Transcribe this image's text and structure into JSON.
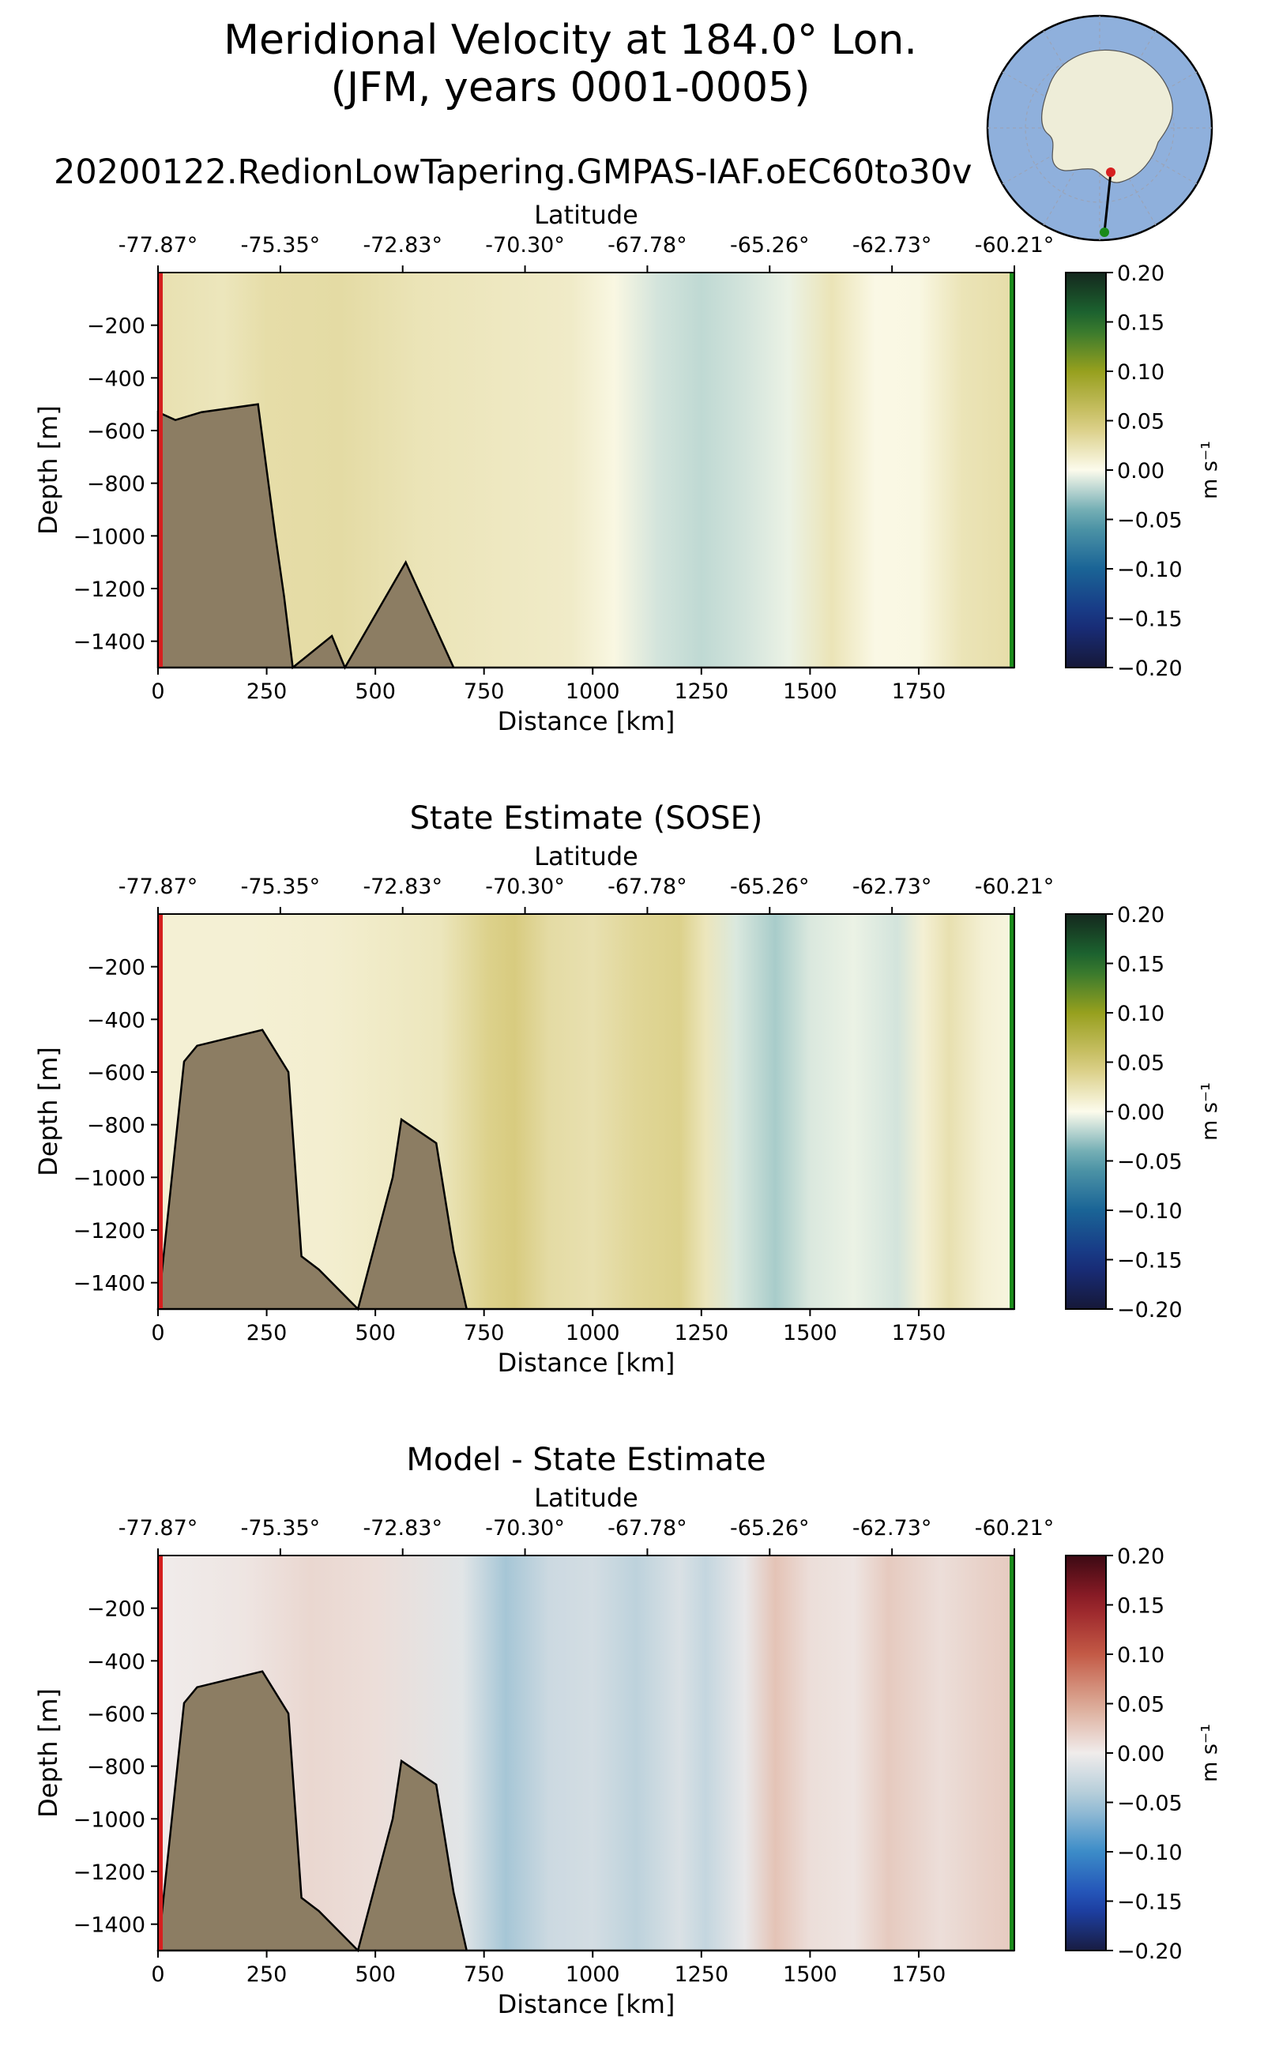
{
  "header": {
    "title_line1": "Meridional Velocity at 184.0° Lon.",
    "title_line2": "(JFM, years 0001-0005)",
    "subtitle": "20200122.RedionLowTapering.GMPAS-IAF.oEC60to30v"
  },
  "colors": {
    "seafloor_fill": "#8c7d63",
    "transect_start_marker": "#d62020",
    "transect_end_marker": "#1a8a1a",
    "inset_ocean": "#8fb0dc",
    "inset_land": "#eeedd8"
  },
  "chart_data": [
    {
      "type": "heatmap",
      "title": "",
      "xlabel": "Distance [km]",
      "ylabel": "Depth [m]",
      "top_axis_label": "Latitude",
      "x_ticks": [
        0,
        250,
        500,
        750,
        1000,
        1250,
        1500,
        1750
      ],
      "x_tick_labels": [
        "0",
        "250",
        "500",
        "750",
        "1000",
        "1250",
        "1500",
        "1750"
      ],
      "y_ticks": [
        -200,
        -400,
        -600,
        -800,
        -1000,
        -1200,
        -1400
      ],
      "y_tick_labels": [
        "−200",
        "−400",
        "−600",
        "−800",
        "−1000",
        "−1200",
        "−1400"
      ],
      "top_tick_labels": [
        "-77.87°",
        "-75.35°",
        "-72.83°",
        "-70.30°",
        "-67.78°",
        "-65.26°",
        "-62.73°",
        "-60.21°"
      ],
      "xlim": [
        0,
        1970
      ],
      "ylim": [
        -1500,
        0
      ],
      "colorbar": {
        "cmap": "delta",
        "range": [
          -0.2,
          0.2
        ],
        "ticks": [
          "0.20",
          "0.15",
          "0.10",
          "0.05",
          "0.00",
          "−0.05",
          "−0.10",
          "−0.15",
          "−0.20"
        ],
        "label": "m s⁻¹"
      },
      "field_columns": [
        {
          "x": 0,
          "v": 0.025
        },
        {
          "x": 150,
          "v": 0.02
        },
        {
          "x": 250,
          "v": 0.028
        },
        {
          "x": 420,
          "v": 0.03
        },
        {
          "x": 600,
          "v": 0.022
        },
        {
          "x": 800,
          "v": 0.018
        },
        {
          "x": 950,
          "v": 0.015
        },
        {
          "x": 1050,
          "v": 0.004
        },
        {
          "x": 1150,
          "v": -0.012
        },
        {
          "x": 1250,
          "v": -0.018
        },
        {
          "x": 1350,
          "v": -0.012
        },
        {
          "x": 1450,
          "v": -0.005
        },
        {
          "x": 1550,
          "v": 0.022
        },
        {
          "x": 1650,
          "v": 0.003
        },
        {
          "x": 1750,
          "v": 0.004
        },
        {
          "x": 1850,
          "v": 0.022
        },
        {
          "x": 1970,
          "v": 0.028
        }
      ],
      "seafloor_depth_profile": [
        {
          "x": 0,
          "z": -530
        },
        {
          "x": 40,
          "z": -560
        },
        {
          "x": 100,
          "z": -530
        },
        {
          "x": 230,
          "z": -500
        },
        {
          "x": 270,
          "z": -1000
        },
        {
          "x": 290,
          "z": -1230
        },
        {
          "x": 310,
          "z": -1500
        },
        {
          "x": 400,
          "z": -1380
        },
        {
          "x": 430,
          "z": -1500
        },
        {
          "x": 570,
          "z": -1100
        },
        {
          "x": 680,
          "z": -1500
        },
        {
          "x": 1970,
          "z": -1500
        }
      ]
    },
    {
      "type": "heatmap",
      "title": "State Estimate (SOSE)",
      "xlabel": "Distance [km]",
      "ylabel": "Depth [m]",
      "top_axis_label": "Latitude",
      "x_ticks": [
        0,
        250,
        500,
        750,
        1000,
        1250,
        1500,
        1750
      ],
      "x_tick_labels": [
        "0",
        "250",
        "500",
        "750",
        "1000",
        "1250",
        "1500",
        "1750"
      ],
      "y_ticks": [
        -200,
        -400,
        -600,
        -800,
        -1000,
        -1200,
        -1400
      ],
      "y_tick_labels": [
        "−200",
        "−400",
        "−600",
        "−800",
        "−1000",
        "−1200",
        "−1400"
      ],
      "top_tick_labels": [
        "-77.87°",
        "-75.35°",
        "-72.83°",
        "-70.30°",
        "-67.78°",
        "-65.26°",
        "-62.73°",
        "-60.21°"
      ],
      "xlim": [
        0,
        1970
      ],
      "ylim": [
        -1500,
        0
      ],
      "colorbar": {
        "cmap": "delta",
        "range": [
          -0.2,
          0.2
        ],
        "ticks": [
          "0.20",
          "0.15",
          "0.10",
          "0.05",
          "0.00",
          "−0.05",
          "−0.10",
          "−0.15",
          "−0.20"
        ],
        "label": "m s⁻¹"
      },
      "field_columns": [
        {
          "x": 0,
          "v": 0.01
        },
        {
          "x": 200,
          "v": 0.01
        },
        {
          "x": 400,
          "v": 0.012
        },
        {
          "x": 650,
          "v": 0.02
        },
        {
          "x": 760,
          "v": 0.04
        },
        {
          "x": 820,
          "v": 0.045
        },
        {
          "x": 900,
          "v": 0.03
        },
        {
          "x": 1000,
          "v": 0.025
        },
        {
          "x": 1100,
          "v": 0.035
        },
        {
          "x": 1200,
          "v": 0.04
        },
        {
          "x": 1260,
          "v": 0.02
        },
        {
          "x": 1330,
          "v": -0.01
        },
        {
          "x": 1420,
          "v": -0.025
        },
        {
          "x": 1500,
          "v": -0.01
        },
        {
          "x": 1600,
          "v": -0.005
        },
        {
          "x": 1700,
          "v": -0.012
        },
        {
          "x": 1760,
          "v": 0.01
        },
        {
          "x": 1820,
          "v": 0.025
        },
        {
          "x": 1900,
          "v": 0.01
        },
        {
          "x": 1970,
          "v": 0.005
        }
      ],
      "seafloor_depth_profile": [
        {
          "x": 0,
          "z": -1500
        },
        {
          "x": 60,
          "z": -560
        },
        {
          "x": 90,
          "z": -500
        },
        {
          "x": 240,
          "z": -440
        },
        {
          "x": 300,
          "z": -600
        },
        {
          "x": 330,
          "z": -1300
        },
        {
          "x": 370,
          "z": -1350
        },
        {
          "x": 460,
          "z": -1500
        },
        {
          "x": 540,
          "z": -1000
        },
        {
          "x": 560,
          "z": -780
        },
        {
          "x": 640,
          "z": -870
        },
        {
          "x": 680,
          "z": -1280
        },
        {
          "x": 710,
          "z": -1500
        },
        {
          "x": 1970,
          "z": -1500
        }
      ]
    },
    {
      "type": "heatmap",
      "title": "Model - State Estimate",
      "xlabel": "Distance [km]",
      "ylabel": "Depth [m]",
      "top_axis_label": "Latitude",
      "x_ticks": [
        0,
        250,
        500,
        750,
        1000,
        1250,
        1500,
        1750
      ],
      "x_tick_labels": [
        "0",
        "250",
        "500",
        "750",
        "1000",
        "1250",
        "1500",
        "1750"
      ],
      "y_ticks": [
        -200,
        -400,
        -600,
        -800,
        -1000,
        -1200,
        -1400
      ],
      "y_tick_labels": [
        "−200",
        "−400",
        "−600",
        "−800",
        "−1000",
        "−1200",
        "−1400"
      ],
      "top_tick_labels": [
        "-77.87°",
        "-75.35°",
        "-72.83°",
        "-70.30°",
        "-67.78°",
        "-65.26°",
        "-62.73°",
        "-60.21°"
      ],
      "xlim": [
        0,
        1970
      ],
      "ylim": [
        -1500,
        0
      ],
      "colorbar": {
        "cmap": "balance",
        "range": [
          -0.2,
          0.2
        ],
        "ticks": [
          "0.20",
          "0.15",
          "0.10",
          "0.05",
          "0.00",
          "−0.05",
          "−0.10",
          "−0.15",
          "−0.20"
        ],
        "label": "m s⁻¹"
      },
      "field_columns": [
        {
          "x": 0,
          "v": 0.0
        },
        {
          "x": 200,
          "v": 0.005
        },
        {
          "x": 350,
          "v": 0.015
        },
        {
          "x": 500,
          "v": 0.01
        },
        {
          "x": 700,
          "v": -0.01
        },
        {
          "x": 800,
          "v": -0.05
        },
        {
          "x": 900,
          "v": -0.025
        },
        {
          "x": 1000,
          "v": -0.02
        },
        {
          "x": 1100,
          "v": -0.035
        },
        {
          "x": 1200,
          "v": -0.015
        },
        {
          "x": 1260,
          "v": -0.03
        },
        {
          "x": 1350,
          "v": -0.005
        },
        {
          "x": 1420,
          "v": 0.03
        },
        {
          "x": 1500,
          "v": 0.01
        },
        {
          "x": 1600,
          "v": 0.005
        },
        {
          "x": 1680,
          "v": 0.025
        },
        {
          "x": 1800,
          "v": 0.01
        },
        {
          "x": 1900,
          "v": 0.02
        },
        {
          "x": 1970,
          "v": 0.025
        }
      ],
      "seafloor_depth_profile": [
        {
          "x": 0,
          "z": -1500
        },
        {
          "x": 60,
          "z": -560
        },
        {
          "x": 90,
          "z": -500
        },
        {
          "x": 240,
          "z": -440
        },
        {
          "x": 300,
          "z": -600
        },
        {
          "x": 330,
          "z": -1300
        },
        {
          "x": 370,
          "z": -1350
        },
        {
          "x": 460,
          "z": -1500
        },
        {
          "x": 540,
          "z": -1000
        },
        {
          "x": 560,
          "z": -780
        },
        {
          "x": 640,
          "z": -870
        },
        {
          "x": 680,
          "z": -1280
        },
        {
          "x": 710,
          "z": -1500
        },
        {
          "x": 1970,
          "z": -1500
        }
      ]
    }
  ]
}
